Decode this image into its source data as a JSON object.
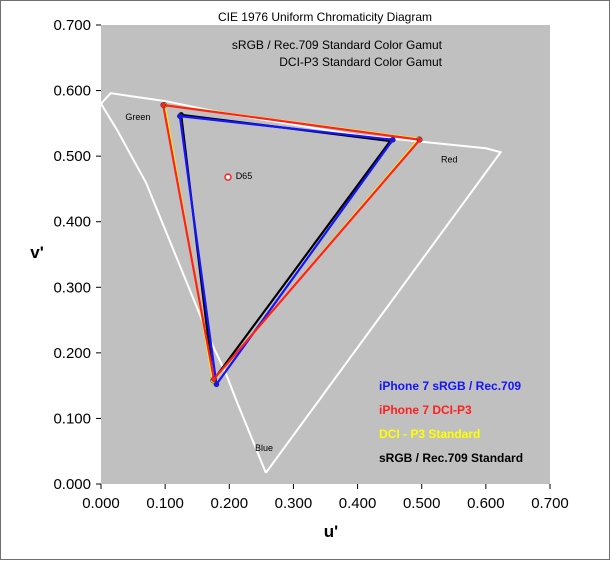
{
  "chart_data": {
    "type": "scatter",
    "title": "CIE 1976 Uniform Chromaticity Diagram",
    "subtitles": [
      "sRGB / Rec.709 Standard Color Gamut",
      "DCI-P3 Standard Color Gamut"
    ],
    "xlabel": "u'",
    "ylabel": "v'",
    "xlim": [
      0,
      0.7
    ],
    "ylim": [
      0,
      0.7
    ],
    "x_ticks": [
      "0.000",
      "0.100",
      "0.200",
      "0.300",
      "0.400",
      "0.500",
      "0.600",
      "0.700"
    ],
    "y_ticks": [
      "0.000",
      "0.100",
      "0.200",
      "0.300",
      "0.400",
      "0.500",
      "0.600",
      "0.700"
    ],
    "grid": false,
    "plot_background": "#c0c0c0",
    "spectral_locus": [
      [
        0.257,
        0.017
      ],
      [
        0.235,
        0.07
      ],
      [
        0.214,
        0.12
      ],
      [
        0.194,
        0.17
      ],
      [
        0.17,
        0.22
      ],
      [
        0.145,
        0.28
      ],
      [
        0.12,
        0.34
      ],
      [
        0.095,
        0.4
      ],
      [
        0.07,
        0.46
      ],
      [
        0.025,
        0.54
      ],
      [
        0.0,
        0.58
      ],
      [
        0.015,
        0.596
      ],
      [
        0.05,
        0.591
      ],
      [
        0.1,
        0.584
      ],
      [
        0.2,
        0.564
      ],
      [
        0.3,
        0.548
      ],
      [
        0.4,
        0.532
      ],
      [
        0.5,
        0.522
      ],
      [
        0.6,
        0.512
      ],
      [
        0.623,
        0.506
      ],
      [
        0.257,
        0.017
      ]
    ],
    "series": [
      {
        "name": "sRGB / Rec.709 Standard",
        "color": "#000000",
        "points": [
          [
            0.451,
            0.523
          ],
          [
            0.125,
            0.563
          ],
          [
            0.175,
            0.158
          ]
        ]
      },
      {
        "name": "DCI - P3 Standard",
        "color": "#ffff00",
        "points": [
          [
            0.496,
            0.526
          ],
          [
            0.099,
            0.578
          ],
          [
            0.175,
            0.158
          ]
        ]
      },
      {
        "name": "iPhone 7 sRGB / Rec.709",
        "color": "#1414ff",
        "points": [
          [
            0.455,
            0.525
          ],
          [
            0.123,
            0.561
          ],
          [
            0.18,
            0.152
          ]
        ]
      },
      {
        "name": "iPhone 7 DCI-P3",
        "color": "#ff2020",
        "points": [
          [
            0.497,
            0.525
          ],
          [
            0.097,
            0.578
          ],
          [
            0.176,
            0.16
          ]
        ]
      }
    ],
    "legend_order": [
      "iPhone 7 sRGB / Rec.709",
      "iPhone 7 DCI-P3",
      "DCI - P3 Standard",
      "sRGB / Rec.709 Standard"
    ],
    "legend_position": "bottom-right",
    "annotations": [
      {
        "text": "Green",
        "x": 0.038,
        "y": 0.555
      },
      {
        "text": "Red",
        "x": 0.53,
        "y": 0.49
      },
      {
        "text": "Blue",
        "x": 0.24,
        "y": 0.05
      },
      {
        "text": "D65",
        "x": 0.21,
        "y": 0.465
      }
    ],
    "white_point": {
      "name": "D65",
      "x": 0.198,
      "y": 0.468,
      "color": "#ff2020"
    }
  }
}
